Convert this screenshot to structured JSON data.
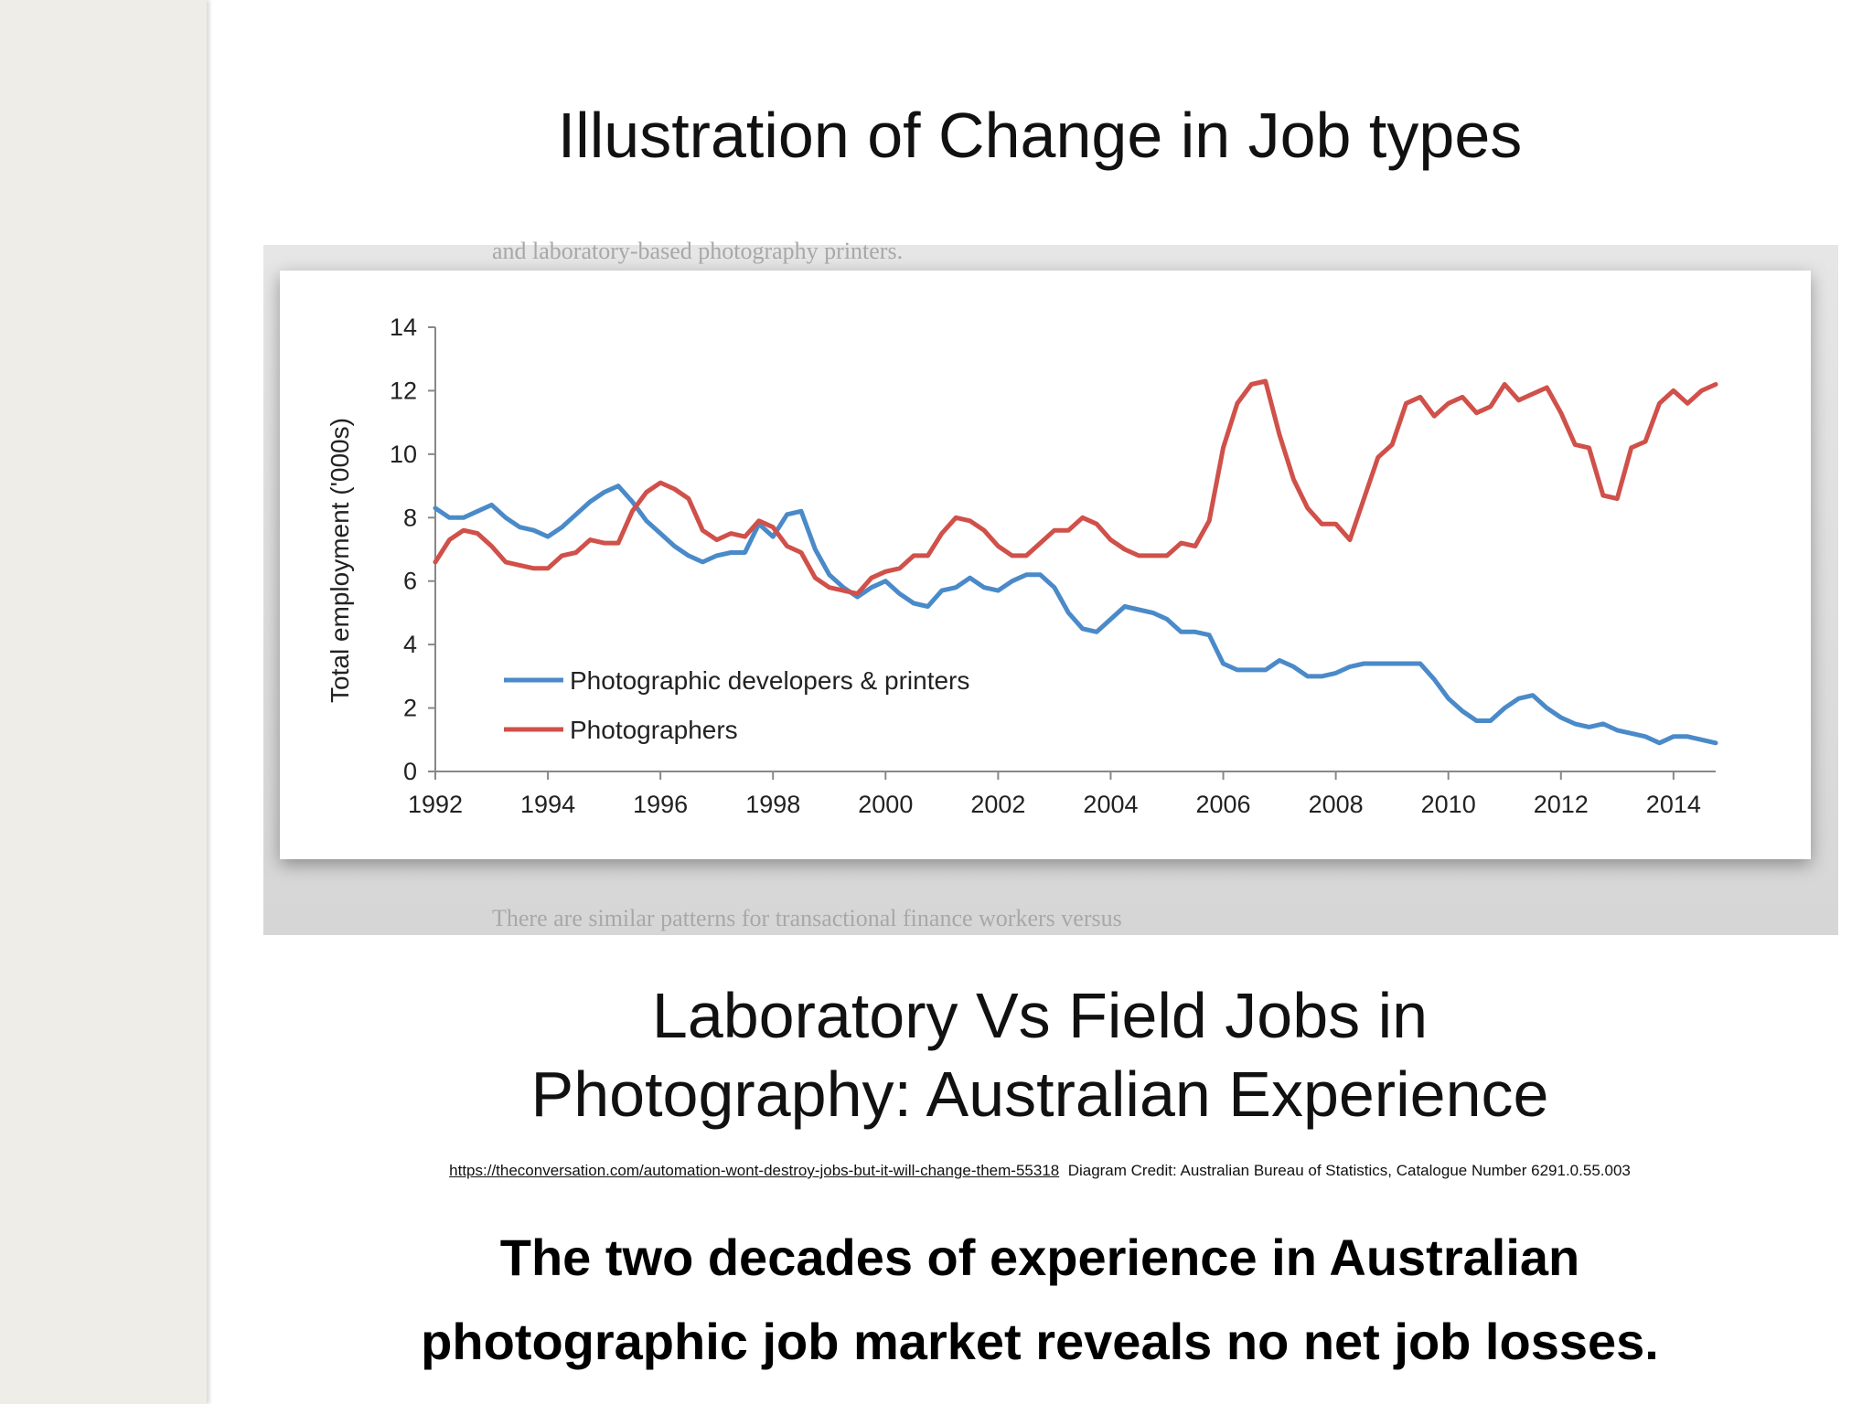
{
  "slide": {
    "title": "Illustration of  Change in Job types",
    "subtitle_lines": [
      "Laboratory Vs Field Jobs in",
      "Photography: Australian Experience"
    ],
    "credit_link": "https://theconversation.com/automation-wont-destroy-jobs-but-it-will-change-them-55318",
    "credit_text": "Diagram Credit: Australian Bureau of Statistics, Catalogue Number 6291.0.55.003",
    "conclusion_lines": [
      "The two decades of experience in Australian",
      "photographic job market reveals no net job losses."
    ]
  },
  "scan_context": {
    "top_text": "and laboratory-based photography printers.",
    "bottom_text": "There are similar patterns for transactional finance workers versus"
  },
  "chart_data": {
    "type": "line",
    "title": "",
    "xlabel": "",
    "ylabel": "Total employment ('000s)",
    "xlim": [
      1992,
      2014.75
    ],
    "ylim": [
      0,
      14
    ],
    "xticks": [
      "1992",
      "1994",
      "1996",
      "1998",
      "2000",
      "2002",
      "2004",
      "2006",
      "2008",
      "2010",
      "2012",
      "2014"
    ],
    "yticks": [
      "0",
      "2",
      "4",
      "6",
      "8",
      "10",
      "12",
      "14"
    ],
    "grid": false,
    "legend_position": "bottom-left",
    "x": [
      1992,
      1992.25,
      1992.5,
      1992.75,
      1993,
      1993.25,
      1993.5,
      1993.75,
      1994,
      1994.25,
      1994.5,
      1994.75,
      1995,
      1995.25,
      1995.5,
      1995.75,
      1996,
      1996.25,
      1996.5,
      1996.75,
      1997,
      1997.25,
      1997.5,
      1997.75,
      1998,
      1998.25,
      1998.5,
      1998.75,
      1999,
      1999.25,
      1999.5,
      1999.75,
      2000,
      2000.25,
      2000.5,
      2000.75,
      2001,
      2001.25,
      2001.5,
      2001.75,
      2002,
      2002.25,
      2002.5,
      2002.75,
      2003,
      2003.25,
      2003.5,
      2003.75,
      2004,
      2004.25,
      2004.5,
      2004.75,
      2005,
      2005.25,
      2005.5,
      2005.75,
      2006,
      2006.25,
      2006.5,
      2006.75,
      2007,
      2007.25,
      2007.5,
      2007.75,
      2008,
      2008.25,
      2008.5,
      2008.75,
      2009,
      2009.25,
      2009.5,
      2009.75,
      2010,
      2010.25,
      2010.5,
      2010.75,
      2011,
      2011.25,
      2011.5,
      2011.75,
      2012,
      2012.25,
      2012.5,
      2012.75,
      2013,
      2013.25,
      2013.5,
      2013.75,
      2014,
      2014.25,
      2014.5,
      2014.75
    ],
    "series": [
      {
        "name": "Photographic developers & printers",
        "color": "#4a8ac9",
        "values": [
          8.3,
          8.0,
          8.0,
          8.2,
          8.4,
          8.0,
          7.7,
          7.6,
          7.4,
          7.7,
          8.1,
          8.5,
          8.8,
          9.0,
          8.5,
          7.9,
          7.5,
          7.1,
          6.8,
          6.6,
          6.8,
          6.9,
          6.9,
          7.8,
          7.4,
          8.1,
          8.2,
          7.0,
          6.2,
          5.8,
          5.5,
          5.8,
          6.0,
          5.6,
          5.3,
          5.2,
          5.7,
          5.8,
          6.1,
          5.8,
          5.7,
          6.0,
          6.2,
          6.2,
          5.8,
          5.0,
          4.5,
          4.4,
          4.8,
          5.2,
          5.1,
          5.0,
          4.8,
          4.4,
          4.4,
          4.3,
          3.4,
          3.2,
          3.2,
          3.2,
          3.5,
          3.3,
          3.0,
          3.0,
          3.1,
          3.3,
          3.4,
          3.4,
          3.4,
          3.4,
          3.4,
          2.9,
          2.3,
          1.9,
          1.6,
          1.6,
          2.0,
          2.3,
          2.4,
          2.0,
          1.7,
          1.5,
          1.4,
          1.5,
          1.3,
          1.2,
          1.1,
          0.9,
          1.1,
          1.1,
          1.0,
          0.9
        ]
      },
      {
        "name": "Photographers",
        "color": "#d0504a",
        "values": [
          6.6,
          7.3,
          7.6,
          7.5,
          7.1,
          6.6,
          6.5,
          6.4,
          6.4,
          6.8,
          6.9,
          7.3,
          7.2,
          7.2,
          8.2,
          8.8,
          9.1,
          8.9,
          8.6,
          7.6,
          7.3,
          7.5,
          7.4,
          7.9,
          7.7,
          7.1,
          6.9,
          6.1,
          5.8,
          5.7,
          5.6,
          6.1,
          6.3,
          6.4,
          6.8,
          6.8,
          7.5,
          8.0,
          7.9,
          7.6,
          7.1,
          6.8,
          6.8,
          7.2,
          7.6,
          7.6,
          8.0,
          7.8,
          7.3,
          7.0,
          6.8,
          6.8,
          6.8,
          7.2,
          7.1,
          7.9,
          10.2,
          11.6,
          12.2,
          12.3,
          10.6,
          9.2,
          8.3,
          7.8,
          7.8,
          7.3,
          8.6,
          9.9,
          10.3,
          11.6,
          11.8,
          11.2,
          11.6,
          11.8,
          11.3,
          11.5,
          12.2,
          11.7,
          11.9,
          12.1,
          11.3,
          10.3,
          10.2,
          8.7,
          8.6,
          10.2,
          10.4,
          11.6,
          12.0,
          11.6,
          12.0,
          12.2
        ]
      }
    ]
  }
}
